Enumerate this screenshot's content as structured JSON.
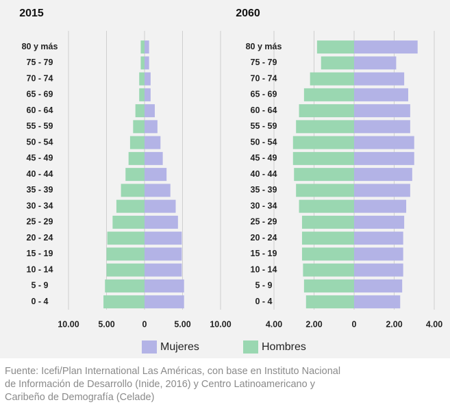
{
  "chart_data": [
    {
      "type": "pyramid",
      "title": "2015",
      "categories": [
        "80 y más",
        "75 - 79",
        "70 - 74",
        "65 - 69",
        "60 - 64",
        "55 - 59",
        "50 - 54",
        "45 - 49",
        "40 - 44",
        "35 - 39",
        "30 - 34",
        "25 - 29",
        "20 - 24",
        "15 - 19",
        "10 - 14",
        "5 -  9",
        "0 -  4"
      ],
      "series": [
        {
          "name": "Mujeres",
          "color": "#b3b3e6",
          "values": [
            0.6,
            0.6,
            0.8,
            0.8,
            1.35,
            1.7,
            2.1,
            2.4,
            2.9,
            3.4,
            4.1,
            4.4,
            4.9,
            4.9,
            4.9,
            5.2,
            5.2
          ]
        },
        {
          "name": "Hombres",
          "color": "#9ad7b1",
          "values": [
            0.5,
            0.5,
            0.7,
            0.7,
            1.2,
            1.5,
            1.9,
            2.1,
            2.5,
            3.1,
            3.7,
            4.2,
            4.9,
            5.0,
            5.0,
            5.2,
            5.4
          ]
        }
      ],
      "xlim": [
        -10,
        10
      ],
      "xticks": [
        {
          "value": -10,
          "label": "10.00"
        },
        {
          "value": -5,
          "label": "5.00"
        },
        0,
        {
          "value": 5,
          "label": "5.00"
        },
        {
          "value": 10,
          "label": "10.00"
        }
      ],
      "grid": true
    },
    {
      "type": "pyramid",
      "title": "2060",
      "categories": [
        "80 y más",
        "75 - 79",
        "70 - 74",
        "65 - 69",
        "60 - 64",
        "55 - 59",
        "50 - 54",
        "45 - 49",
        "40 - 44",
        "35 - 39",
        "30 - 34",
        "25 - 29",
        "20 - 24",
        "15 - 19",
        "10 - 14",
        "5 -  9",
        "0 -  4"
      ],
      "series": [
        {
          "name": "Mujeres",
          "color": "#b3b3e6",
          "values": [
            3.17,
            2.1,
            2.5,
            2.7,
            2.8,
            2.8,
            3.0,
            3.0,
            2.9,
            2.8,
            2.6,
            2.5,
            2.45,
            2.45,
            2.45,
            2.4,
            2.3
          ]
        },
        {
          "name": "Hombres",
          "color": "#9ad7b1",
          "values": [
            1.85,
            1.65,
            2.2,
            2.5,
            2.75,
            2.9,
            3.05,
            3.05,
            3.0,
            2.9,
            2.75,
            2.6,
            2.6,
            2.6,
            2.55,
            2.5,
            2.4
          ]
        }
      ],
      "xlim": [
        -4,
        4
      ],
      "xticks": [
        {
          "value": -4,
          "label": "4.00"
        },
        {
          "value": -2,
          "label": "2.00"
        },
        0,
        {
          "value": 2,
          "label": "2.00"
        },
        {
          "value": 4,
          "label": "4.00"
        }
      ],
      "grid": true
    }
  ],
  "source": [
    "Fuente: Icefi/Plan International Las Américas, con base en Instituto Nacional",
    "de Información de Desarrollo (Inide, 2016) y Centro Latinoamericano y",
    "Caribeño de Demografía (Celade)"
  ]
}
